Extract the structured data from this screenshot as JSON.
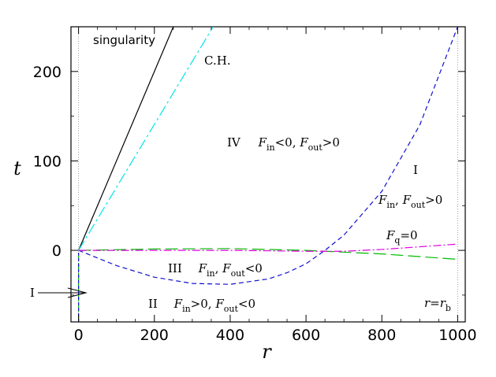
{
  "chart_data": {
    "type": "line",
    "xlabel": "r",
    "ylabel": "t",
    "xlim": [
      -20,
      1020
    ],
    "ylim": [
      -80,
      250
    ],
    "x_ticks": [
      0,
      200,
      400,
      600,
      800,
      1000
    ],
    "y_ticks": [
      0,
      100,
      200
    ],
    "series": [
      {
        "key": "singularity",
        "color": "#000000",
        "dash": "",
        "x": [
          0,
          250
        ],
        "y": [
          0,
          250
        ]
      },
      {
        "key": "ch",
        "color": "#00e5e5",
        "dash": "14 4 3 4",
        "x": [
          0,
          355
        ],
        "y": [
          0,
          250
        ]
      },
      {
        "key": "fin_zero",
        "color": "#1010d0",
        "dash": "6 4",
        "x": [
          0,
          100,
          200,
          300,
          400,
          500,
          550,
          600,
          650,
          700,
          800,
          900,
          1000
        ],
        "y": [
          0,
          -17,
          -30,
          -37,
          -38,
          -32,
          -25,
          -15,
          0,
          17,
          66,
          140,
          250
        ]
      },
      {
        "key": "fout_zero",
        "color": "#00bb00",
        "dash": "16 6",
        "x": [
          0,
          200,
          400,
          600,
          800,
          1000
        ],
        "y": [
          0,
          1.5,
          2,
          0,
          -4,
          -10
        ]
      },
      {
        "key": "fq_zero",
        "color": "#dd00dd",
        "dash": "10 3 2 3",
        "x": [
          0,
          200,
          400,
          600,
          700,
          800,
          900,
          1000
        ],
        "y": [
          0,
          0,
          0,
          -1,
          -1,
          1,
          4,
          7
        ]
      },
      {
        "key": "vertical_r0",
        "color": "#00bb00",
        "dash": "10 3",
        "x": [
          0,
          0
        ],
        "y": [
          -80,
          0
        ]
      },
      {
        "key": "vertical_r0_inner",
        "color": "#1010d0",
        "dash": "4 3",
        "x": [
          0,
          0
        ],
        "y": [
          -80,
          0
        ]
      }
    ],
    "reference_lines": [
      {
        "key": "r_zero",
        "x": 0
      },
      {
        "key": "r_b",
        "x": 1000
      }
    ],
    "annotations": {
      "singularity": "singularity",
      "ch": "C.H.",
      "region_iv": {
        "roman": "IV",
        "f1": "F",
        "f1_sub": "in",
        "f1_rel": "<0, ",
        "f2": "F",
        "f2_sub": "out",
        "f2_rel": ">0"
      },
      "region_i": "I",
      "region_i_cond": {
        "f1": "F",
        "f1_sub": "in",
        "sep": ", ",
        "f2": "F",
        "f2_sub": "out",
        "rel": ">0"
      },
      "fq": {
        "f": "F",
        "sub": "q",
        "rel": "=0"
      },
      "region_iii": {
        "roman": "III",
        "f1": "F",
        "f1_sub": "in",
        "sep": ", ",
        "f2": "F",
        "f2_sub": "out",
        "rel": "<0"
      },
      "region_ii": {
        "roman": "II",
        "f1": "F",
        "f1_sub": "in",
        "f1_rel": ">0, ",
        "f2": "F",
        "f2_sub": "out",
        "f2_rel": "<0"
      },
      "rb": {
        "r": "r",
        "eq": "=",
        "r2": "r",
        "sub": "b"
      },
      "arrow_label": "I"
    }
  }
}
